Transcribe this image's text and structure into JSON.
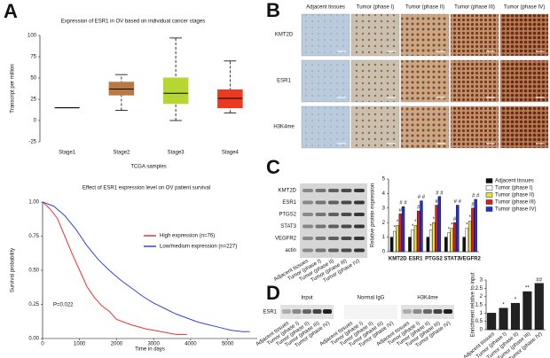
{
  "panel_labels": [
    "A",
    "B",
    "C",
    "D"
  ],
  "chart_data": [
    {
      "type": "box",
      "title": "Expression of ESR1 in OV based on individual cancer stages",
      "y_label": "Transcript per million",
      "x_label": "TCGA samples",
      "categories": [
        "Stage1",
        "Stage2",
        "Stage3",
        "Stage4"
      ],
      "boxes": [
        {
          "min": 15,
          "q1": 15,
          "median": 15,
          "q3": 15,
          "max": 15
        },
        {
          "min": 12,
          "q1": 30,
          "median": 37,
          "q3": 45,
          "max": 54
        },
        {
          "min": 0,
          "q1": 20,
          "median": 32,
          "q3": 50,
          "max": 97
        },
        {
          "min": 9,
          "q1": 15,
          "median": 26,
          "q3": 36,
          "max": 70
        }
      ],
      "colors": [
        "#a0522d",
        "#b87a45",
        "#b8d632",
        "#ea3b22"
      ],
      "ylim": [
        -25,
        100
      ],
      "yticks": [
        -25,
        0,
        25,
        50,
        75,
        100
      ]
    },
    {
      "type": "line",
      "title": "Effect of ESR1 expression level on OV patient survival",
      "y_label": "Survival probability",
      "x_label": "Time in days",
      "annotation": "P=0.022",
      "series": [
        {
          "name": "High expression (n=76)",
          "color": "#ee3333",
          "x": [
            0,
            200,
            400,
            600,
            800,
            1000,
            1200,
            1400,
            1600,
            1800,
            2000,
            2400,
            2800,
            3200,
            3600,
            3900
          ],
          "values": [
            1,
            0.95,
            0.88,
            0.75,
            0.62,
            0.5,
            0.38,
            0.3,
            0.24,
            0.2,
            0.14,
            0.1,
            0.07,
            0.05,
            0.03,
            0.03
          ]
        },
        {
          "name": "Low/medium expression (n=227)",
          "color": "#3344dd",
          "x": [
            0,
            300,
            600,
            900,
            1200,
            1500,
            1800,
            2100,
            2400,
            2700,
            3000,
            3300,
            3600,
            3900,
            4200,
            4500,
            4800,
            5100,
            5400,
            5600
          ],
          "values": [
            1,
            0.97,
            0.9,
            0.8,
            0.68,
            0.58,
            0.5,
            0.43,
            0.37,
            0.31,
            0.26,
            0.22,
            0.18,
            0.15,
            0.12,
            0.1,
            0.08,
            0.06,
            0.05,
            0.05
          ]
        }
      ],
      "xlim": [
        0,
        5800
      ],
      "xticks": [
        0,
        1000,
        2000,
        3000,
        4000,
        5000
      ],
      "ylim": [
        0,
        1
      ],
      "yticks": [
        {
          "value": 0,
          "label": "0.00"
        },
        {
          "value": 0.25,
          "label": "0.25"
        },
        {
          "value": 0.5,
          "label": "0.50"
        },
        {
          "value": 0.75,
          "label": "0.75"
        },
        {
          "value": 1,
          "label": "1.00"
        }
      ],
      "legend": "upper right"
    },
    {
      "type": "bar",
      "y_label": "Relative protein expression",
      "categories": [
        "KMT2D",
        "ESR1",
        "PTGS2",
        "STAT3",
        "VEGFR2"
      ],
      "series": [
        {
          "name": "Adjacent tissues",
          "color": "#111111",
          "values": [
            1,
            1,
            1,
            1,
            1
          ],
          "annotations": [
            null,
            null,
            null,
            null,
            null
          ]
        },
        {
          "name": "Tumor (phase I)",
          "color": "#ffffff",
          "values": [
            1.4,
            1.5,
            1.5,
            1.3,
            1.6
          ],
          "annotations": [
            "*",
            "*",
            "*",
            "*",
            "*"
          ]
        },
        {
          "name": "Tumor (phase II)",
          "color": "#e8e23a",
          "values": [
            1.8,
            1.8,
            2.0,
            1.6,
            2.1
          ],
          "annotations": [
            "*",
            "*",
            "*",
            "*",
            "*"
          ]
        },
        {
          "name": "Tumor (phase III)",
          "color": "#d62020",
          "values": [
            2.6,
            2.8,
            3.2,
            2.0,
            3.0
          ],
          "annotations": [
            "#",
            "#",
            "#",
            "#",
            "#"
          ]
        },
        {
          "name": "Tumor (phase IV)",
          "color": "#2233cc",
          "values": [
            3.1,
            3.5,
            3.8,
            3.2,
            3.6
          ],
          "annotations": [
            "# #",
            "# #",
            "# #",
            "# #",
            "# #"
          ]
        }
      ],
      "ylim": [
        0,
        5
      ],
      "yticks": [
        0,
        1,
        2,
        3,
        4,
        5
      ],
      "legend": "right"
    },
    {
      "type": "bar",
      "y_label": "Enrichment relative to input",
      "categories": [
        "Adjacent tissues",
        "Tumor (phase I)",
        "Tumor (phase II)",
        "Tumor (phase III)",
        "Tumor (phase IV)"
      ],
      "values": [
        1,
        1.3,
        1.6,
        2.3,
        2.8
      ],
      "annotations": [
        null,
        "*",
        "*",
        "**",
        "##"
      ],
      "color": "#222222",
      "ylim": [
        0,
        3
      ],
      "yticks": [
        0,
        0.5,
        1,
        1.5,
        2,
        2.5,
        3
      ]
    }
  ],
  "ihc": {
    "columns": [
      "Adjacent tissues",
      "Tumor (phase I)",
      "Tumor (phase II)",
      "Tumor (phase III)",
      "Tumor (phase IV)"
    ],
    "rows": [
      "KMT2D",
      "ESR1",
      "H3K4me"
    ]
  },
  "western_c": {
    "rows": [
      "KMT2D",
      "ESR1",
      "PTGS2",
      "STAT3",
      "VEGFR2",
      "actin"
    ],
    "lanes": [
      "Adjacent tissues",
      "Tumor (phase I)",
      "Tumor (phase II)",
      "Tumor (phase III)",
      "Tumor (phase IV)"
    ]
  },
  "chip_d": {
    "row": "ESR1",
    "groups": [
      "Input",
      "Normal IgG",
      "H3K4me"
    ],
    "lanes": [
      "Adjacent tissues",
      "Tumor (phase I)",
      "Tumor (phase II)",
      "Tumor (phase III)",
      "Tumor (phase IV)"
    ]
  }
}
